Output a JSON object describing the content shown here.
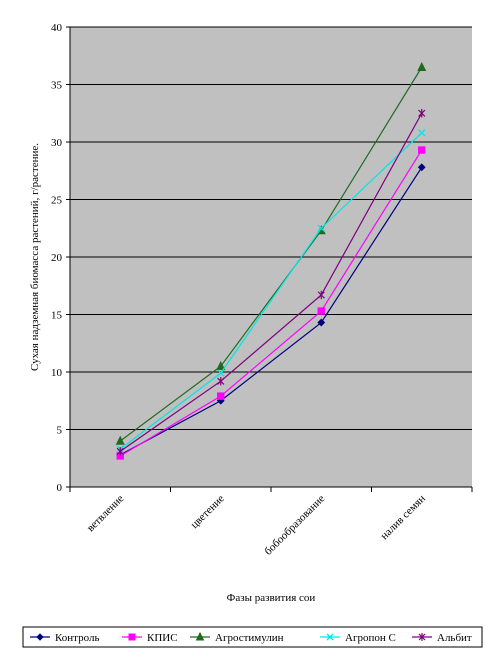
{
  "chart_data": {
    "type": "line",
    "xlabel": "Фазы развития сои",
    "ylabel": "Сухая надземная биомасса растений, г/растение.",
    "categories": [
      "ветвление",
      "цветение",
      "бобообразование",
      "налив семян"
    ],
    "ylim": [
      0,
      40
    ],
    "yticks": [
      0,
      5,
      10,
      15,
      20,
      25,
      30,
      35,
      40
    ],
    "grid": true,
    "legend_position": "bottom",
    "plot_background": "#c0c0c0",
    "series": [
      {
        "name": "Контроль",
        "color": "#000080",
        "marker": "diamond",
        "values": [
          2.8,
          7.5,
          14.3,
          27.8
        ]
      },
      {
        "name": "КПИС",
        "color": "#ff00ff",
        "marker": "square",
        "values": [
          2.7,
          7.9,
          15.3,
          29.3
        ]
      },
      {
        "name": "Агростимулин",
        "color": "#1f6b1f",
        "marker": "triangle",
        "values": [
          4.0,
          10.5,
          22.3,
          36.5
        ]
      },
      {
        "name": "Агропон С",
        "color": "#00e5e5",
        "marker": "x",
        "values": [
          3.3,
          9.9,
          22.5,
          30.8
        ]
      },
      {
        "name": "Альбит",
        "color": "#800080",
        "marker": "star",
        "values": [
          3.1,
          9.2,
          16.7,
          32.5
        ]
      }
    ]
  }
}
